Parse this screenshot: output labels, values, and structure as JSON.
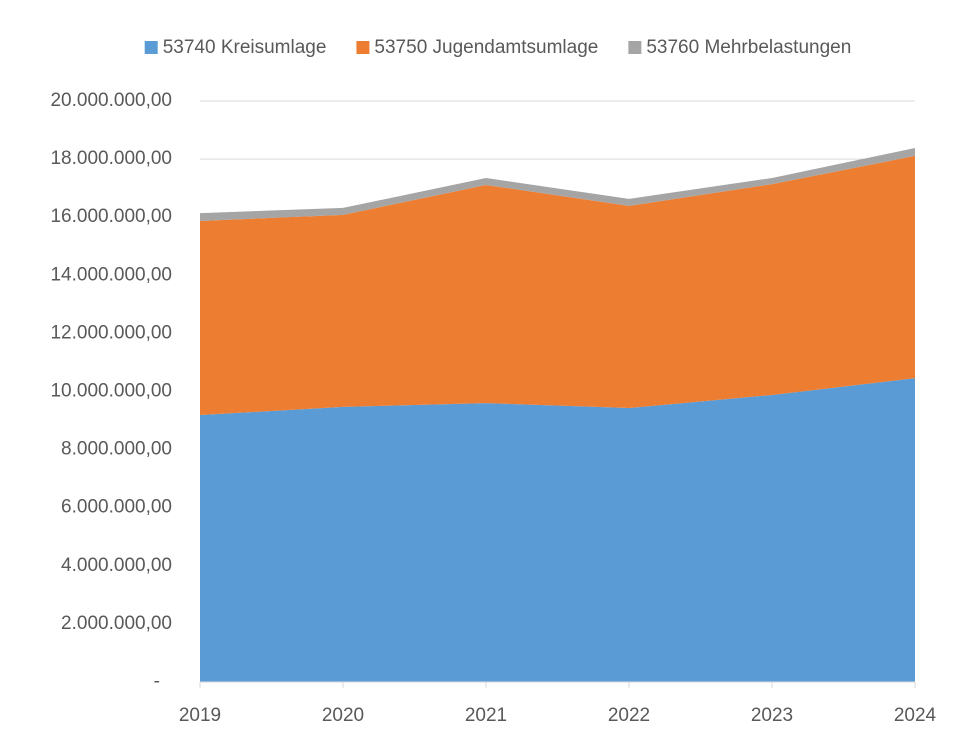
{
  "chart_data": {
    "type": "stacked_area",
    "categories": [
      "2019",
      "2020",
      "2021",
      "2022",
      "2023",
      "2024"
    ],
    "series": [
      {
        "name": "53740 Kreisumlage",
        "color": "#5b9bd5",
        "values": [
          9190000,
          9470000,
          9600000,
          9430000,
          9880000,
          10460000
        ]
      },
      {
        "name": "53750 Jugendamtsumlage",
        "color": "#ed7d31",
        "values": [
          6680000,
          6610000,
          7510000,
          6960000,
          7260000,
          7650000
        ]
      },
      {
        "name": "53760 Mehrbelastungen",
        "color": "#a5a5a5",
        "values": [
          270000,
          240000,
          240000,
          240000,
          210000,
          270000
        ]
      }
    ],
    "ylim": [
      0,
      20000000
    ],
    "yticks": [
      {
        "value": 0,
        "label": "-"
      },
      {
        "value": 2000000,
        "label": "2.000.000,00"
      },
      {
        "value": 4000000,
        "label": "4.000.000,00"
      },
      {
        "value": 6000000,
        "label": "6.000.000,00"
      },
      {
        "value": 8000000,
        "label": "8.000.000,00"
      },
      {
        "value": 10000000,
        "label": "10.000.000,00"
      },
      {
        "value": 12000000,
        "label": "12.000.000,00"
      },
      {
        "value": 14000000,
        "label": "14.000.000,00"
      },
      {
        "value": 16000000,
        "label": "16.000.000,00"
      },
      {
        "value": 18000000,
        "label": "18.000.000,00"
      },
      {
        "value": 20000000,
        "label": "20.000.000,00"
      }
    ],
    "grid": true,
    "legend": "top"
  }
}
